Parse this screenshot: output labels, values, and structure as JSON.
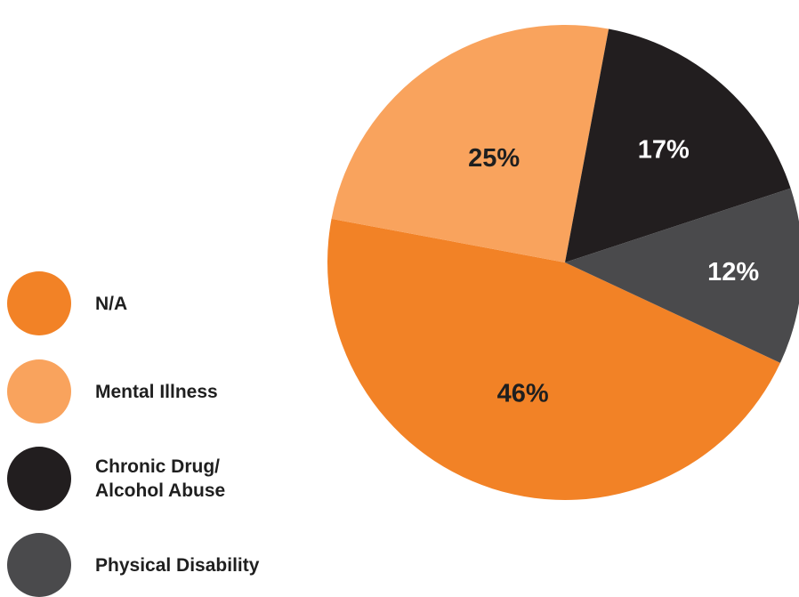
{
  "chart_data": {
    "type": "pie",
    "slices": [
      {
        "label": "N/A",
        "value": 46,
        "display": "46%",
        "color": "#f28226",
        "label_color": "#1f1f1f"
      },
      {
        "label": "Mental Illness",
        "value": 25,
        "display": "25%",
        "color": "#f9a35d",
        "label_color": "#1f1f1f"
      },
      {
        "label": "Chronic Drug/\nAlcohol Abuse",
        "value": 17,
        "display": "17%",
        "color": "#221e1f",
        "label_color": "#ffffff"
      },
      {
        "label": "Physical Disability",
        "value": 12,
        "display": "12%",
        "color": "#4a4a4c",
        "label_color": "#ffffff"
      }
    ],
    "legend": "left"
  }
}
